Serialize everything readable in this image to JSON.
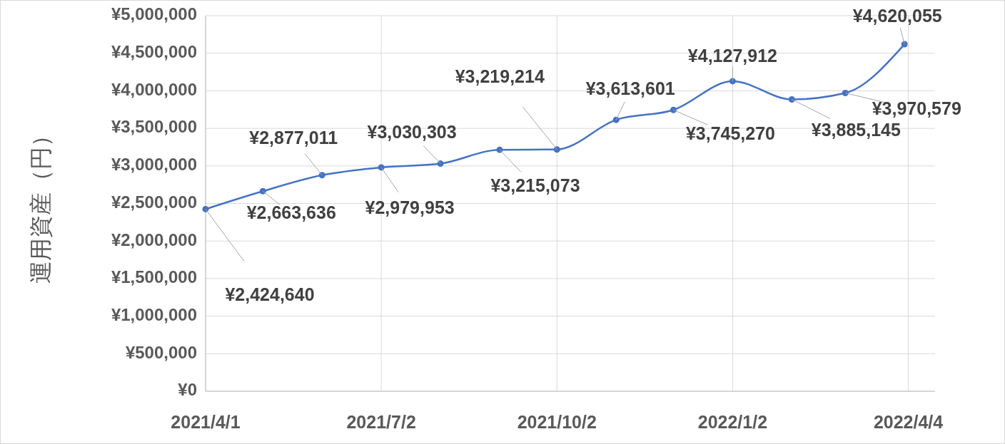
{
  "chart_data": {
    "type": "line",
    "ylabel": "運用資産（円）",
    "x": [
      "2021-04-01",
      "2021-05-01",
      "2021-06-01",
      "2021-07-02",
      "2021-08-02",
      "2021-09-02",
      "2021-10-02",
      "2021-11-02",
      "2021-12-02",
      "2022-01-02",
      "2022-02-02",
      "2022-03-02",
      "2022-04-02"
    ],
    "series": [
      {
        "color": "#4472c4",
        "values": [
          2424640,
          2663636,
          2877011,
          2979953,
          3030303,
          3215073,
          3219214,
          3613601,
          3745270,
          4127912,
          3885145,
          3970579,
          4620055
        ],
        "value_labels": [
          "¥2,424,640",
          "¥2,663,636",
          "¥2,877,011",
          "¥2,979,953",
          "¥3,030,303",
          "¥3,215,073",
          "¥3,219,214",
          "¥3,613,601",
          "¥3,745,270",
          "¥4,127,912",
          "¥3,885,145",
          "¥3,970,579",
          "¥4,620,055"
        ]
      }
    ],
    "xlim": [
      "2021-04-01",
      "2022-04-18"
    ],
    "xticks": [
      {
        "value": "2021-04-01",
        "label": "2021/4/1"
      },
      {
        "value": "2021-07-02",
        "label": "2021/7/2"
      },
      {
        "value": "2021-10-02",
        "label": "2021/10/2"
      },
      {
        "value": "2022-01-02",
        "label": "2022/1/2"
      },
      {
        "value": "2022-04-04",
        "label": "2022/4/4"
      }
    ],
    "ylim": [
      0,
      5000000
    ],
    "yticks": [
      {
        "value": 0,
        "label": "¥0"
      },
      {
        "value": 500000,
        "label": "¥500,000"
      },
      {
        "value": 1000000,
        "label": "¥1,000,000"
      },
      {
        "value": 1500000,
        "label": "¥1,500,000"
      },
      {
        "value": 2000000,
        "label": "¥2,000,000"
      },
      {
        "value": 2500000,
        "label": "¥2,500,000"
      },
      {
        "value": 3000000,
        "label": "¥3,000,000"
      },
      {
        "value": 3500000,
        "label": "¥3,500,000"
      },
      {
        "value": 4000000,
        "label": "¥4,000,000"
      },
      {
        "value": 4500000,
        "label": "¥4,500,000"
      },
      {
        "value": 5000000,
        "label": "¥5,000,000"
      }
    ],
    "grid": true,
    "marker": "circle",
    "line_style": "solid"
  }
}
